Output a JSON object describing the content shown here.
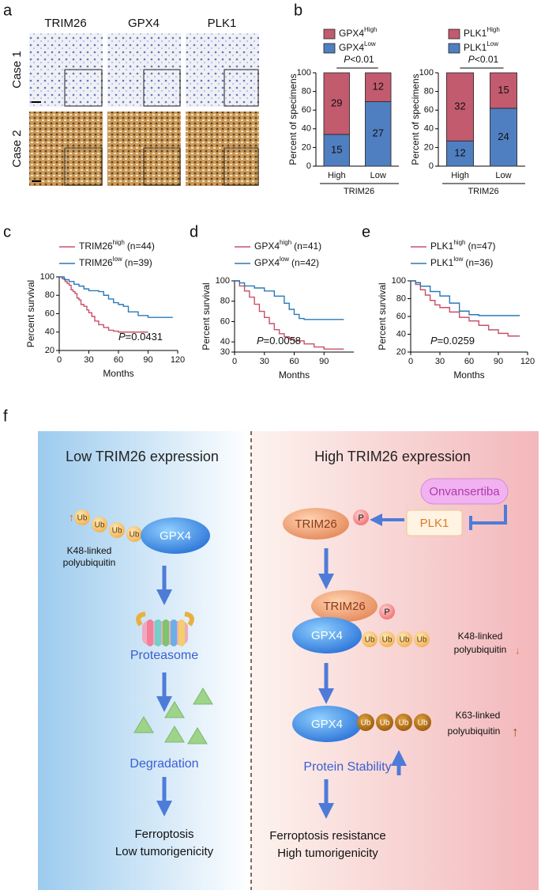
{
  "panel_a": {
    "letter": "a",
    "columns": [
      "TRIM26",
      "GPX4",
      "PLK1"
    ],
    "rows": [
      "Case 1",
      "Case 2"
    ]
  },
  "chart_data": [
    {
      "type": "bar",
      "stacked": true,
      "panel": "b",
      "ylabel": "Percent of specimens",
      "categories": [
        "High",
        "Low"
      ],
      "group_label": "TRIM26",
      "annotation": {
        "italic": "P",
        "text": "<0.01"
      },
      "ylim": [
        0,
        100
      ],
      "yticks": [
        0,
        20,
        40,
        60,
        80,
        100
      ],
      "series": [
        {
          "name": "GPX4",
          "superscript": "High",
          "color": "#c25b6e",
          "values": [
            66,
            31
          ],
          "counts": [
            29,
            12
          ]
        },
        {
          "name": "GPX4",
          "superscript": "Low",
          "color": "#4f7fc0",
          "values": [
            34,
            69
          ],
          "counts": [
            15,
            27
          ]
        }
      ]
    },
    {
      "type": "bar",
      "stacked": true,
      "ylabel": "Percent of specimens",
      "categories": [
        "High",
        "Low"
      ],
      "group_label": "TRIM26",
      "annotation": {
        "italic": "P",
        "text": "<0.01"
      },
      "ylim": [
        0,
        100
      ],
      "yticks": [
        0,
        20,
        40,
        60,
        80,
        100
      ],
      "series": [
        {
          "name": "PLK1",
          "superscript": "High",
          "color": "#c25b6e",
          "values": [
            73,
            38
          ],
          "counts": [
            32,
            15
          ]
        },
        {
          "name": "PLK1",
          "superscript": "Low",
          "color": "#4f7fc0",
          "values": [
            27,
            62
          ],
          "counts": [
            12,
            24
          ]
        }
      ]
    },
    {
      "type": "line",
      "step": true,
      "panel": "c",
      "xlabel": "Months",
      "ylabel": "Percent survival",
      "xlim": [
        0,
        120
      ],
      "xticks": [
        0,
        30,
        60,
        90,
        120
      ],
      "ylim": [
        20,
        100
      ],
      "yticks": [
        20,
        40,
        60,
        80,
        100
      ],
      "annotation": {
        "italic": "P",
        "text": "=0.0431"
      },
      "series": [
        {
          "name": "TRIM26",
          "superscript": "high",
          "n_label": "(n=44)",
          "color": "#c8506a",
          "x": [
            0,
            3,
            6,
            8,
            10,
            12,
            14,
            16,
            18,
            20,
            22,
            25,
            28,
            30,
            33,
            36,
            40,
            45,
            50,
            55,
            60,
            90
          ],
          "values": [
            100,
            98,
            95,
            93,
            91,
            86,
            84,
            82,
            77,
            75,
            70,
            68,
            64,
            61,
            57,
            52,
            48,
            45,
            42,
            41,
            40,
            40
          ]
        },
        {
          "name": "TRIM26",
          "superscript": "low",
          "n_label": "(n=39)",
          "color": "#2a7ab8",
          "x": [
            0,
            5,
            10,
            15,
            20,
            25,
            30,
            40,
            45,
            50,
            55,
            60,
            65,
            70,
            80,
            90,
            115
          ],
          "values": [
            100,
            97,
            95,
            92,
            90,
            87,
            85,
            84,
            80,
            76,
            72,
            70,
            68,
            62,
            58,
            56,
            56
          ]
        }
      ]
    },
    {
      "type": "line",
      "step": true,
      "panel": "d",
      "xlabel": "Months",
      "ylabel": "Percent survival",
      "xlim": [
        0,
        120
      ],
      "xticks": [
        0,
        30,
        60,
        90
      ],
      "ylim": [
        30,
        100
      ],
      "yticks": [
        30,
        40,
        60,
        80,
        100
      ],
      "annotation": {
        "italic": "P",
        "text": "=0.0058"
      },
      "series": [
        {
          "name": "GPX4",
          "superscript": "high",
          "n_label": "(n=41)",
          "color": "#c8506a",
          "x": [
            0,
            5,
            10,
            15,
            20,
            25,
            30,
            35,
            40,
            45,
            50,
            55,
            60,
            70,
            80,
            90,
            110
          ],
          "values": [
            100,
            95,
            90,
            84,
            77,
            70,
            64,
            58,
            52,
            48,
            45,
            43,
            41,
            38,
            35,
            33,
            33
          ]
        },
        {
          "name": "GPX4",
          "superscript": "low",
          "n_label": "(n=42)",
          "color": "#2a7ab8",
          "x": [
            0,
            5,
            10,
            20,
            30,
            40,
            50,
            55,
            60,
            65,
            70,
            110
          ],
          "values": [
            100,
            98,
            95,
            93,
            90,
            85,
            78,
            72,
            67,
            63,
            62,
            62
          ]
        }
      ]
    },
    {
      "type": "line",
      "step": true,
      "panel": "e",
      "xlabel": "Months",
      "ylabel": "Percent survival",
      "xlim": [
        0,
        120
      ],
      "xticks": [
        0,
        30,
        60,
        90,
        120
      ],
      "ylim": [
        20,
        100
      ],
      "yticks": [
        20,
        40,
        60,
        80,
        100
      ],
      "annotation": {
        "italic": "P",
        "text": "=0.0259"
      },
      "series": [
        {
          "name": "PLK1",
          "superscript": "high",
          "n_label": "(n=47)",
          "color": "#c8506a",
          "x": [
            0,
            5,
            10,
            15,
            20,
            25,
            30,
            40,
            50,
            60,
            70,
            80,
            90,
            100,
            112
          ],
          "values": [
            100,
            96,
            90,
            84,
            78,
            73,
            70,
            65,
            59,
            55,
            50,
            45,
            41,
            38,
            38
          ]
        },
        {
          "name": "PLK1",
          "superscript": "low",
          "n_label": "(n=36)",
          "color": "#2a7ab8",
          "x": [
            0,
            5,
            10,
            20,
            30,
            40,
            50,
            60,
            70,
            112
          ],
          "values": [
            100,
            98,
            94,
            88,
            83,
            75,
            66,
            62,
            61,
            61
          ]
        }
      ]
    }
  ],
  "figure_f": {
    "letter": "f",
    "left": {
      "title": "Low TRIM26 expression",
      "ub": "Ub",
      "gpx4": "GPX4",
      "linkage": [
        "K48-linked",
        "polyubiquitin"
      ],
      "proteasome": "Proteasome",
      "degradation": "Degradation",
      "outcome": [
        "Ferroptosis",
        "Low tumorigenicity"
      ]
    },
    "right": {
      "title": "High TRIM26 expression",
      "drug": "Onvansertiba",
      "plk1": "PLK1",
      "trim26": "TRIM26",
      "phospho": "P",
      "gpx4": "GPX4",
      "ub": "Ub",
      "k48": [
        "K48-linked",
        "polyubiquitin"
      ],
      "k63": [
        "K63-linked",
        "polyubiquitin"
      ],
      "stability": "Protein Stability",
      "outcome": [
        "Ferroptosis resistance",
        "High tumorigenicity"
      ]
    }
  }
}
